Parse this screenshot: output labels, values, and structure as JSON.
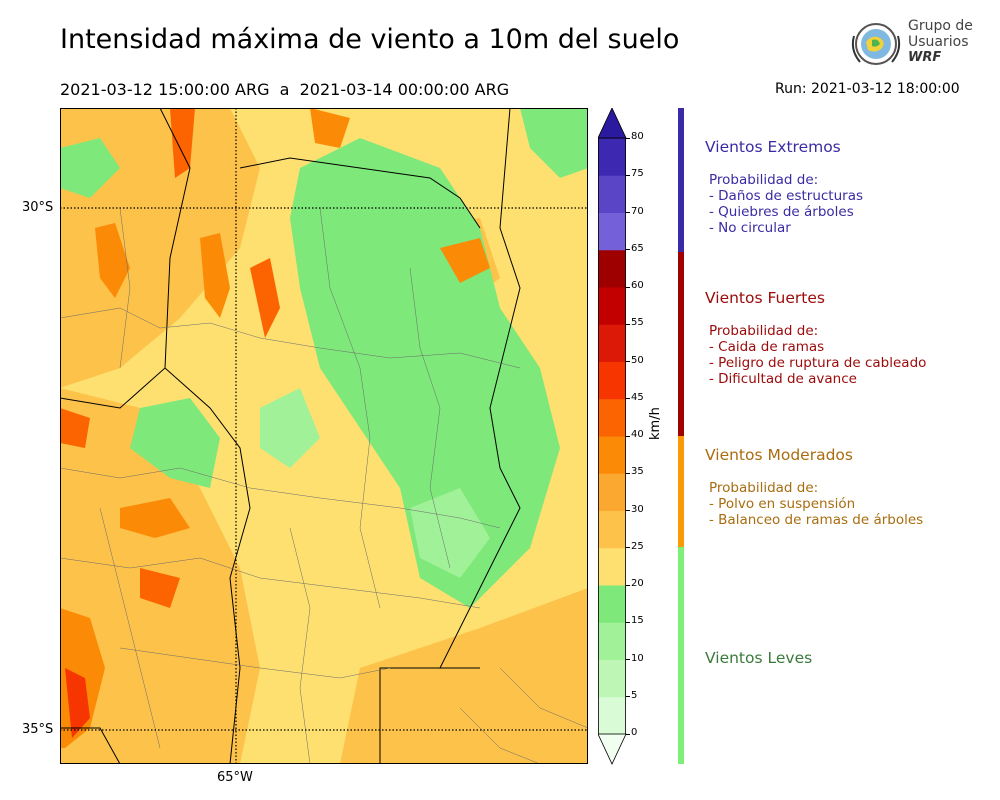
{
  "header": {
    "title": "Intensidad máxima de viento a 10m del suelo",
    "period": "2021-03-12 15:00:00 ARG  a  2021-03-14 00:00:00 ARG",
    "run": "Run: 2021-03-12 18:00:00",
    "logo_line1": "Grupo de",
    "logo_line2": "Usuarios",
    "logo_line3": "WRF"
  },
  "map": {
    "lat_labels": [
      "30°S",
      "35°S"
    ],
    "lon_labels": [
      "65°W"
    ]
  },
  "colorbar": {
    "unit": "km/h",
    "ticks": [
      "0",
      "5",
      "10",
      "15",
      "20",
      "25",
      "30",
      "35",
      "40",
      "45",
      "50",
      "55",
      "60",
      "65",
      "70",
      "75",
      "80"
    ],
    "colors": [
      "#f1fff1",
      "#d9fbd6",
      "#bef6b6",
      "#a0f198",
      "#7ee87a",
      "#fde070",
      "#fdc24a",
      "#fba830",
      "#fb8a06",
      "#fb6400",
      "#f63500",
      "#dc1806",
      "#c20000",
      "#9e0000",
      "#7461d9",
      "#5a45c7",
      "#3d28b2",
      "#2a1aa0"
    ]
  },
  "categories": [
    {
      "title": "Vientos Extremos",
      "color": "#3b2ba3",
      "bar_color": "#3a2aa8",
      "items": [
        "Probabilidad de:",
        "- Daños de estructuras",
        "- Quiebres de árboles",
        "- No circular"
      ]
    },
    {
      "title": "Vientos Fuertes",
      "color": "#9c0a0a",
      "bar_color": "#a00000",
      "items": [
        "Probabilidad de:",
        "- Caida de ramas",
        "- Peligro de ruptura de cableado",
        "- Dificultad de avance"
      ]
    },
    {
      "title": "Vientos Moderados",
      "color": "#a86d10",
      "bar_color": "#fb9a06",
      "items": [
        "Probabilidad de:",
        "- Polvo en suspensión",
        "- Balanceo de ramas de árboles"
      ]
    },
    {
      "title": "Vientos Leves",
      "color": "#3a7a3a",
      "bar_color": "#7ef07a",
      "items": []
    }
  ]
}
